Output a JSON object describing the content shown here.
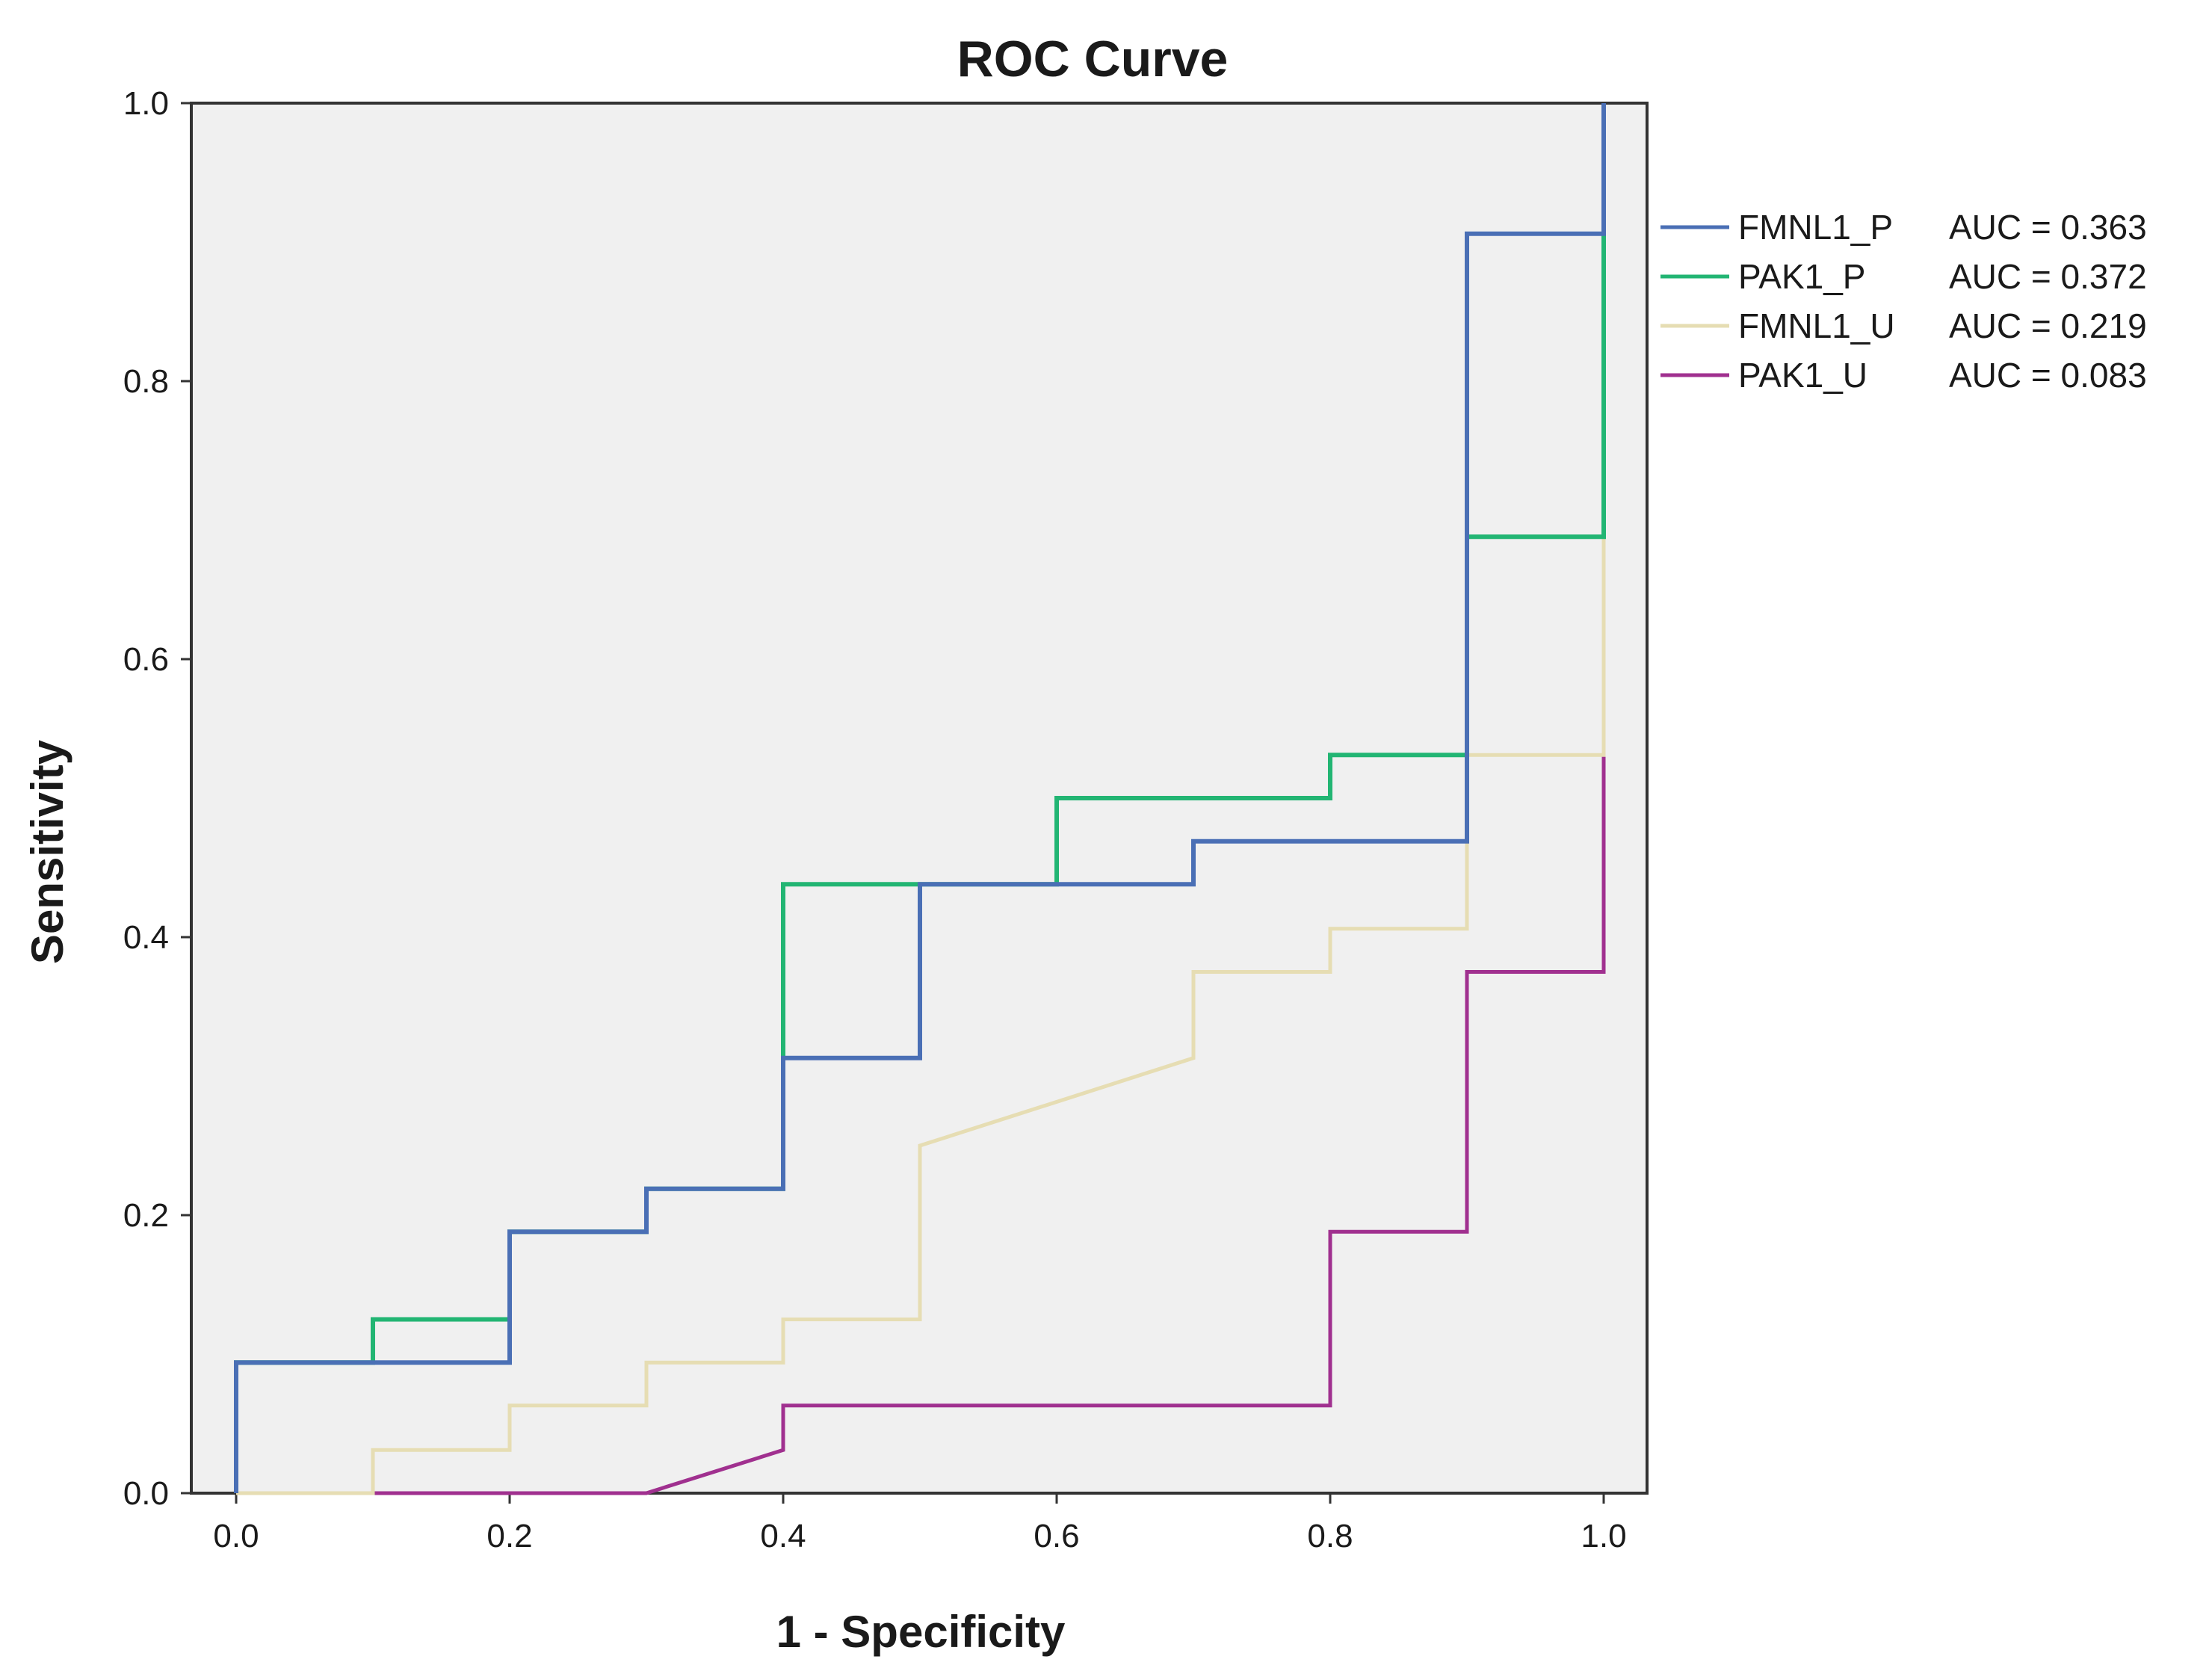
{
  "chart_data": {
    "type": "line",
    "title": "ROC Curve",
    "xlabel": "1 - Specificity",
    "ylabel": "Sensitivity",
    "xlim": [
      0,
      1
    ],
    "ylim": [
      0,
      1
    ],
    "xticks": [
      "0.0",
      "0.2",
      "0.4",
      "0.6",
      "0.8",
      "1.0"
    ],
    "yticks": [
      "0.0",
      "0.2",
      "0.4",
      "0.6",
      "0.8",
      "1.0"
    ],
    "grid": false,
    "legend_position": "right",
    "colors": {
      "plot_background": "#f0f0f0",
      "axis": "#333333"
    },
    "series": [
      {
        "name": "FMNL1_P",
        "auc_label": "AUC = 0.363",
        "color": "#4a6fb5",
        "points": [
          [
            0,
            0
          ],
          [
            0,
            0.094
          ],
          [
            0.2,
            0.094
          ],
          [
            0.2,
            0.188
          ],
          [
            0.3,
            0.188
          ],
          [
            0.3,
            0.219
          ],
          [
            0.4,
            0.219
          ],
          [
            0.4,
            0.313
          ],
          [
            0.5,
            0.313
          ],
          [
            0.5,
            0.438
          ],
          [
            0.7,
            0.438
          ],
          [
            0.7,
            0.469
          ],
          [
            0.9,
            0.469
          ],
          [
            0.9,
            0.906
          ],
          [
            1,
            0.906
          ],
          [
            1,
            1
          ]
        ]
      },
      {
        "name": "PAK1_P",
        "auc_label": "AUC = 0.372",
        "color": "#22b573",
        "points": [
          [
            0,
            0
          ],
          [
            0,
            0.094
          ],
          [
            0.1,
            0.094
          ],
          [
            0.1,
            0.125
          ],
          [
            0.2,
            0.125
          ],
          [
            0.2,
            0.188
          ],
          [
            0.3,
            0.188
          ],
          [
            0.3,
            0.219
          ],
          [
            0.4,
            0.219
          ],
          [
            0.4,
            0.438
          ],
          [
            0.6,
            0.438
          ],
          [
            0.6,
            0.5
          ],
          [
            0.8,
            0.5
          ],
          [
            0.8,
            0.531
          ],
          [
            0.9,
            0.531
          ],
          [
            0.9,
            0.688
          ],
          [
            1,
            0.688
          ],
          [
            1,
            1
          ]
        ]
      },
      {
        "name": "FMNL1_U",
        "auc_label": "AUC = 0.219",
        "color": "#e6ddb3",
        "points": [
          [
            0,
            0
          ],
          [
            0.1,
            0
          ],
          [
            0.1,
            0.031
          ],
          [
            0.2,
            0.031
          ],
          [
            0.2,
            0.063
          ],
          [
            0.3,
            0.063
          ],
          [
            0.3,
            0.094
          ],
          [
            0.4,
            0.094
          ],
          [
            0.4,
            0.125
          ],
          [
            0.5,
            0.125
          ],
          [
            0.5,
            0.25
          ],
          [
            0.7,
            0.313
          ],
          [
            0.7,
            0.375
          ],
          [
            0.8,
            0.375
          ],
          [
            0.8,
            0.406
          ],
          [
            0.9,
            0.406
          ],
          [
            0.9,
            0.531
          ],
          [
            1,
            0.531
          ],
          [
            1,
            1
          ]
        ]
      },
      {
        "name": "PAK1_U",
        "auc_label": "AUC = 0.083",
        "color": "#a0308f",
        "points": [
          [
            0,
            0
          ],
          [
            0.3,
            0
          ],
          [
            0.4,
            0.031
          ],
          [
            0.4,
            0.063
          ],
          [
            0.8,
            0.063
          ],
          [
            0.8,
            0.188
          ],
          [
            0.9,
            0.188
          ],
          [
            0.9,
            0.375
          ],
          [
            1,
            0.375
          ],
          [
            1,
            1
          ]
        ]
      }
    ]
  }
}
